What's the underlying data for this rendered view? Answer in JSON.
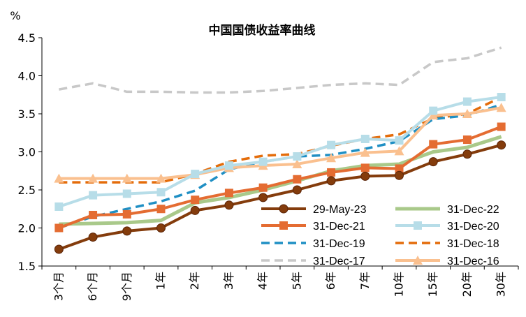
{
  "chart_data": {
    "type": "line",
    "title": "中国国债收益率曲线",
    "ylabel": "%",
    "xlabel": "",
    "ylim": [
      1.5,
      4.5
    ],
    "yticks": [
      1.5,
      2.0,
      2.5,
      3.0,
      3.5,
      4.0,
      4.5
    ],
    "ytick_labels": [
      "1.5",
      "2.0",
      "2.5",
      "3.0",
      "3.5",
      "4.0",
      "4.5"
    ],
    "grid": false,
    "legend_position": "bottom-right",
    "categories": [
      "3个月",
      "6个月",
      "9个月",
      "1年",
      "2年",
      "3年",
      "4年",
      "5年",
      "6年",
      "7年",
      "10年",
      "15年",
      "20年",
      "30年"
    ],
    "series": [
      {
        "name": "29-May-23",
        "color": "#843c0c",
        "style": "solid-circle",
        "values": [
          1.72,
          1.88,
          1.96,
          2.0,
          2.23,
          2.3,
          2.4,
          2.5,
          2.62,
          2.68,
          2.69,
          2.87,
          2.97,
          3.09
        ]
      },
      {
        "name": "31-Dec-22",
        "color": "#a9c98a",
        "style": "solid",
        "values": [
          2.05,
          2.06,
          2.07,
          2.1,
          2.33,
          2.4,
          2.5,
          2.62,
          2.75,
          2.82,
          2.84,
          3.0,
          3.06,
          3.2
        ]
      },
      {
        "name": "31-Dec-21",
        "color": "#e46c32",
        "style": "solid-square",
        "values": [
          2.0,
          2.17,
          2.18,
          2.25,
          2.37,
          2.46,
          2.53,
          2.64,
          2.73,
          2.79,
          2.78,
          3.1,
          3.16,
          3.33
        ]
      },
      {
        "name": "31-Dec-20",
        "color": "#b7dde8",
        "style": "solid-square",
        "values": [
          2.28,
          2.43,
          2.45,
          2.47,
          2.71,
          2.82,
          2.87,
          2.94,
          3.09,
          3.17,
          3.15,
          3.54,
          3.66,
          3.72
        ]
      },
      {
        "name": "31-Dec-19",
        "color": "#1f8fc4",
        "style": "dash",
        "values": [
          2.0,
          2.15,
          2.25,
          2.35,
          2.49,
          2.77,
          2.87,
          2.94,
          2.96,
          3.04,
          3.14,
          3.43,
          3.48,
          3.62
        ]
      },
      {
        "name": "31-Dec-18",
        "color": "#e46c0a",
        "style": "dash",
        "values": [
          2.6,
          2.6,
          2.6,
          2.6,
          2.71,
          2.87,
          2.95,
          2.97,
          3.08,
          3.17,
          3.23,
          3.44,
          3.5,
          3.72
        ]
      },
      {
        "name": "31-Dec-17",
        "color": "#c8c8c8",
        "style": "dash",
        "values": [
          3.82,
          3.9,
          3.79,
          3.79,
          3.78,
          3.78,
          3.8,
          3.84,
          3.88,
          3.9,
          3.88,
          4.18,
          4.23,
          4.37
        ]
      },
      {
        "name": "31-Dec-16",
        "color": "#fac08f",
        "style": "solid-triangle",
        "values": [
          2.65,
          2.65,
          2.65,
          2.65,
          2.7,
          2.79,
          2.82,
          2.84,
          2.92,
          2.99,
          3.01,
          3.48,
          3.5,
          3.58
        ]
      }
    ]
  }
}
